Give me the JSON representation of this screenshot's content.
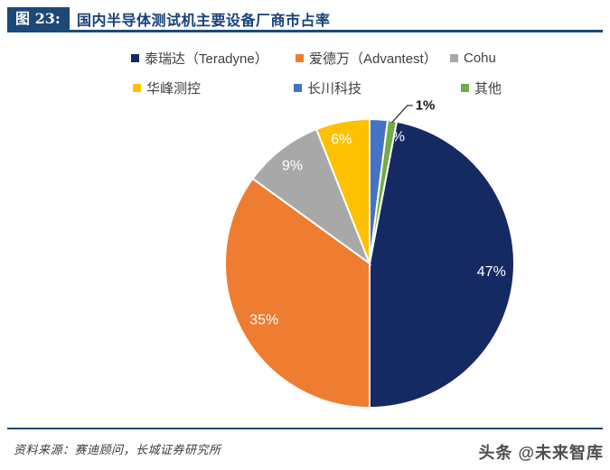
{
  "figure": {
    "tag": "图 23:",
    "title": "国内半导体测试机主要设备厂商市占率"
  },
  "chart_data": {
    "type": "pie",
    "title": "国内半导体测试机主要设备厂商市占率",
    "unit": "percent",
    "slices": [
      {
        "label": "泰瑞达（Teradyne）",
        "value": 47,
        "color": "#152A62"
      },
      {
        "label": "爱德万（Advantest）",
        "value": 35,
        "color": "#EE7D31"
      },
      {
        "label": "Cohu",
        "value": 9,
        "color": "#A8A8A8"
      },
      {
        "label": "华峰测控",
        "value": 6,
        "color": "#FDC101"
      },
      {
        "label": "长川科技",
        "value": 2,
        "color": "#4472C4"
      },
      {
        "label": "其他",
        "value": 1,
        "color": "#6FAD46"
      }
    ],
    "start_angle_deg": 10.8,
    "clockwise": true,
    "data_labels": "percent",
    "legend_position": "top",
    "legend_rows": [
      [
        0,
        1,
        2
      ],
      [
        3,
        4,
        5
      ]
    ]
  },
  "footer": {
    "source": "资料来源：赛迪顾问，长城证券研究所",
    "watermark": "头条 @未来智库"
  },
  "style": {
    "accent_navy": "#1D4978",
    "title_color": "#17417A",
    "legend_text_color": "#3F3F3F",
    "leader_line_color": "#404040"
  }
}
